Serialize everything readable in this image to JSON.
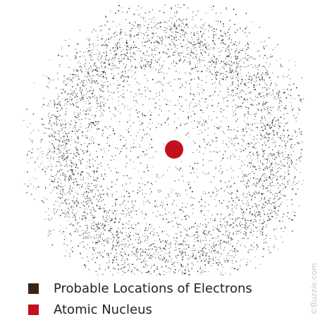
{
  "legend": [
    {
      "label": "Probable Locations of Electrons"
    },
    {
      "label": "Atomic Nucleus"
    }
  ],
  "watermark": "©Buzzle.com"
}
